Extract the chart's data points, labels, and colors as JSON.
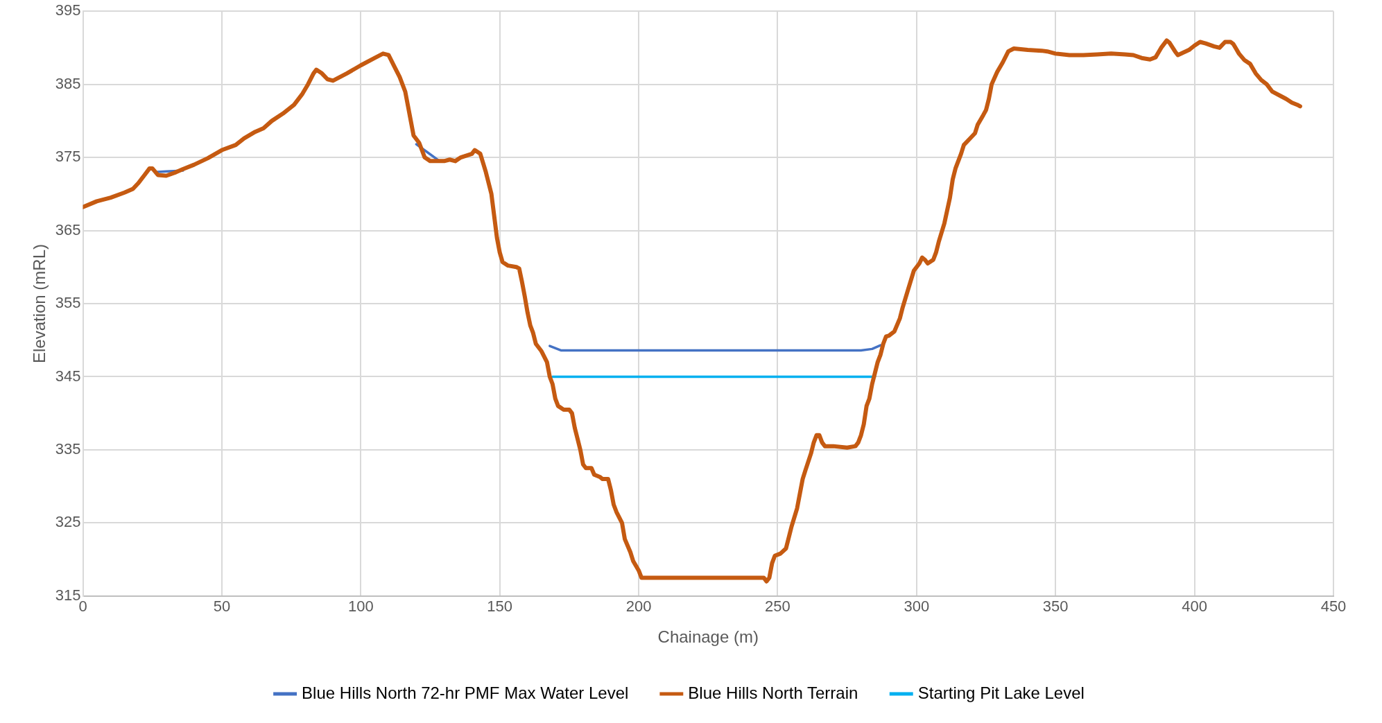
{
  "chart_data": {
    "type": "line",
    "xlabel": "Chainage (m)",
    "ylabel": "Elevation (mRL)",
    "xlim": [
      0,
      450
    ],
    "xticks": [
      0,
      50,
      100,
      150,
      200,
      250,
      300,
      350,
      400,
      450
    ],
    "ylim": [
      315,
      395
    ],
    "yticks": [
      315,
      325,
      335,
      345,
      355,
      365,
      375,
      385,
      395
    ],
    "grid": true,
    "legend": "bottom",
    "marker": "none",
    "line_style": "solid",
    "series": [
      {
        "name": "Blue Hills North 72-hr PMF Max Water Level",
        "color": "#4472c4",
        "x": [
          26,
          30,
          36,
          36.5,
          120,
          124,
          128,
          128.5,
          168,
          172,
          200,
          250,
          280,
          284,
          287
        ],
        "values": [
          373,
          373.1,
          373.2,
          null,
          376.8,
          375.7,
          374.6,
          null,
          349.2,
          348.6,
          348.6,
          348.6,
          348.6,
          348.8,
          349.3
        ]
      },
      {
        "name": "Blue Hills North Terrain",
        "color": "#c55a11",
        "x": [
          0,
          5,
          10,
          15,
          18,
          20,
          22,
          24,
          25,
          27,
          30,
          33,
          36,
          40,
          45,
          50,
          55,
          58,
          62,
          65,
          68,
          72,
          76,
          79,
          81,
          83,
          84,
          86,
          88,
          90,
          95,
          100,
          105,
          108,
          110,
          112,
          114,
          116,
          117,
          118,
          119,
          121,
          122,
          123,
          125,
          130,
          132,
          134,
          136,
          140,
          141,
          143,
          145,
          147,
          148,
          149,
          150,
          151,
          153,
          156,
          157,
          158,
          159,
          160,
          161,
          162,
          163,
          165,
          167,
          168,
          169,
          170,
          171,
          173,
          175,
          176,
          177,
          178,
          179,
          180,
          181,
          183,
          184,
          186,
          187,
          189,
          190,
          191,
          192,
          194,
          195,
          197,
          198,
          200,
          201,
          205,
          220,
          245,
          246,
          247,
          248,
          249,
          251,
          253,
          254,
          255,
          257,
          258,
          259,
          260,
          262,
          263,
          264,
          265,
          266,
          267,
          270,
          275,
          278,
          279,
          280,
          281,
          282,
          283,
          284,
          285,
          286,
          287,
          288,
          289,
          290,
          292,
          294,
          295,
          297,
          299,
          301,
          302,
          303,
          304,
          306,
          307,
          308,
          310,
          312,
          313,
          314,
          316,
          317,
          319,
          321,
          322,
          324,
          325,
          326,
          327,
          329,
          331,
          333,
          335,
          340,
          345,
          347,
          350,
          355,
          360,
          365,
          370,
          375,
          378,
          381,
          384,
          386,
          388,
          390,
          391,
          393,
          394,
          398,
          400,
          402,
          404,
          407,
          409,
          411,
          413,
          414,
          416,
          418,
          420,
          422,
          424,
          426,
          428,
          431,
          433,
          435,
          437,
          438
        ],
        "values": [
          368.2,
          369,
          369.5,
          370.2,
          370.7,
          371.5,
          372.5,
          373.5,
          373.5,
          372.6,
          372.5,
          372.9,
          373.4,
          374,
          374.9,
          376,
          376.7,
          377.6,
          378.5,
          379,
          380,
          381,
          382.2,
          383.7,
          385,
          386.5,
          387,
          386.5,
          385.7,
          385.5,
          386.5,
          387.6,
          388.6,
          389.2,
          389,
          387.5,
          386,
          384,
          382,
          380,
          378,
          377,
          376,
          375,
          374.5,
          374.5,
          374.7,
          374.5,
          375,
          375.5,
          376,
          375.5,
          373,
          370,
          367,
          364,
          362,
          360.7,
          360.2,
          360,
          359.8,
          358,
          356,
          353.8,
          352,
          351,
          349.5,
          348.5,
          347,
          345,
          344,
          342,
          341,
          340.5,
          340.5,
          340,
          338,
          336.5,
          335,
          333,
          332.5,
          332.5,
          331.6,
          331.3,
          331,
          331,
          329.5,
          327.5,
          326.5,
          325,
          322.8,
          321,
          319.8,
          318.5,
          317.5,
          317.5,
          317.5,
          317.5,
          317,
          317.5,
          319.5,
          320.5,
          320.8,
          321.5,
          323,
          324.5,
          327,
          329,
          331,
          332.2,
          334.5,
          336,
          337,
          337,
          336,
          335.5,
          335.5,
          335.3,
          335.5,
          336,
          337,
          338.5,
          341,
          342,
          344,
          345.5,
          347,
          348,
          349.5,
          350.5,
          350.6,
          351.2,
          353,
          354.5,
          357,
          359.5,
          360.5,
          361.3,
          361,
          360.5,
          361,
          362,
          363.5,
          366,
          369.5,
          372,
          373.5,
          375.5,
          376.7,
          377.5,
          378.3,
          379.5,
          380.8,
          381.5,
          383,
          385,
          386.7,
          388,
          389.5,
          389.9,
          389.7,
          389.6,
          389.5,
          389.2,
          389,
          389,
          389.1,
          389.2,
          389.1,
          389,
          388.6,
          388.4,
          388.7,
          390,
          391,
          390.7,
          389.5,
          389,
          389.7,
          390.3,
          390.8,
          390.6,
          390.2,
          390,
          390.8,
          390.8,
          390.5,
          389.2,
          388.3,
          387.8,
          386.5,
          385.6,
          385,
          384,
          383.4,
          383,
          382.5,
          382.2,
          382
        ]
      },
      {
        "name": "Starting Pit Lake Level",
        "color": "#00b0f0",
        "x": [
          169,
          285
        ],
        "values": [
          345,
          345
        ]
      }
    ]
  }
}
